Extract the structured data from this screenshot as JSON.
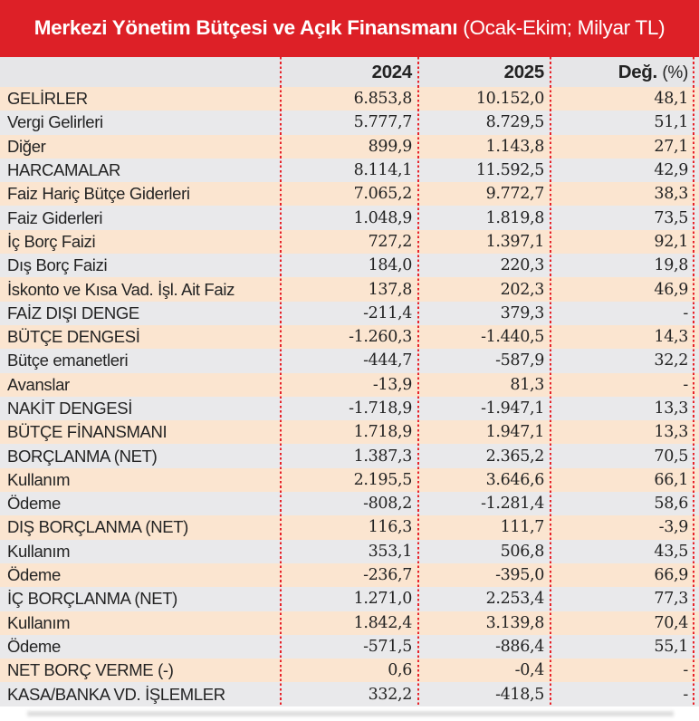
{
  "title": {
    "bold": "Merkezi Yönetim Bütçesi ve Açık Finansmanı",
    "regular": " (Ocak-Ekim; Milyar TL)"
  },
  "header": {
    "col_label": "",
    "col_2024": "2024",
    "col_2025": "2025",
    "col_change_bold": "Değ.",
    "col_change_pct": "(%)"
  },
  "colors": {
    "header_red": "#dd2027",
    "separator_red": "#e8232a",
    "row_peach": "#fbe5d0",
    "row_gray": "#e9e9eb",
    "header_gray": "#e6e6e8",
    "text_dark": "#232323",
    "title_white": "#ffffff",
    "shadow_gray": "#d9d9d9"
  },
  "chart_data": {
    "type": "table",
    "title": "Merkezi Yönetim Bütçesi ve Açık Finansmanı (Ocak-Ekim; Milyar TL)",
    "columns": [
      "",
      "2024",
      "2025",
      "Değ. (%)"
    ],
    "rows": [
      [
        "GELİRLER",
        "6.853,8",
        "10.152,0",
        "48,1"
      ],
      [
        "Vergi Gelirleri",
        "5.777,7",
        "8.729,5",
        "51,1"
      ],
      [
        "Diğer",
        "899,9",
        "1.143,8",
        "27,1"
      ],
      [
        "HARCAMALAR",
        "8.114,1",
        "11.592,5",
        "42,9"
      ],
      [
        "Faiz Hariç Bütçe Giderleri",
        "7.065,2",
        "9.772,7",
        "38,3"
      ],
      [
        "Faiz Giderleri",
        "1.048,9",
        "1.819,8",
        "73,5"
      ],
      [
        "İç Borç Faizi",
        "727,2",
        "1.397,1",
        "92,1"
      ],
      [
        "Dış Borç Faizi",
        "184,0",
        "220,3",
        "19,8"
      ],
      [
        "İskonto ve Kısa Vad. İşl. Ait Faiz",
        "137,8",
        "202,3",
        "46,9"
      ],
      [
        "FAİZ DIŞI DENGE",
        "-211,4",
        "379,3",
        "-"
      ],
      [
        "BÜTÇE DENGESİ",
        "-1.260,3",
        "-1.440,5",
        "14,3"
      ],
      [
        "Bütçe emanetleri",
        "-444,7",
        "-587,9",
        "32,2"
      ],
      [
        "Avanslar",
        "-13,9",
        "81,3",
        "-"
      ],
      [
        "NAKİT DENGESİ",
        "-1.718,9",
        "-1.947,1",
        "13,3"
      ],
      [
        "BÜTÇE FİNANSMANI",
        "1.718,9",
        "1.947,1",
        "13,3"
      ],
      [
        "BORÇLANMA (NET)",
        "1.387,3",
        "2.365,2",
        "70,5"
      ],
      [
        "Kullanım",
        "2.195,5",
        "3.646,6",
        "66,1"
      ],
      [
        "Ödeme",
        "-808,2",
        "-1.281,4",
        "58,6"
      ],
      [
        "DIŞ BORÇLANMA (NET)",
        "116,3",
        "111,7",
        "-3,9"
      ],
      [
        "Kullanım",
        "353,1",
        "506,8",
        "43,5"
      ],
      [
        "Ödeme",
        "-236,7",
        "-395,0",
        "66,9"
      ],
      [
        "İÇ BORÇLANMA (NET)",
        "1.271,0",
        "2.253,4",
        "77,3"
      ],
      [
        "Kullanım",
        "1.842,4",
        "3.139,8",
        "70,4"
      ],
      [
        "Ödeme",
        "-571,5",
        "-886,4",
        "55,1"
      ],
      [
        "NET BORÇ VERME (-)",
        "0,6",
        "-0,4",
        "-"
      ],
      [
        "KASA/BANKA VD. İŞLEMLER",
        "332,2",
        "-418,5",
        "-"
      ]
    ]
  }
}
